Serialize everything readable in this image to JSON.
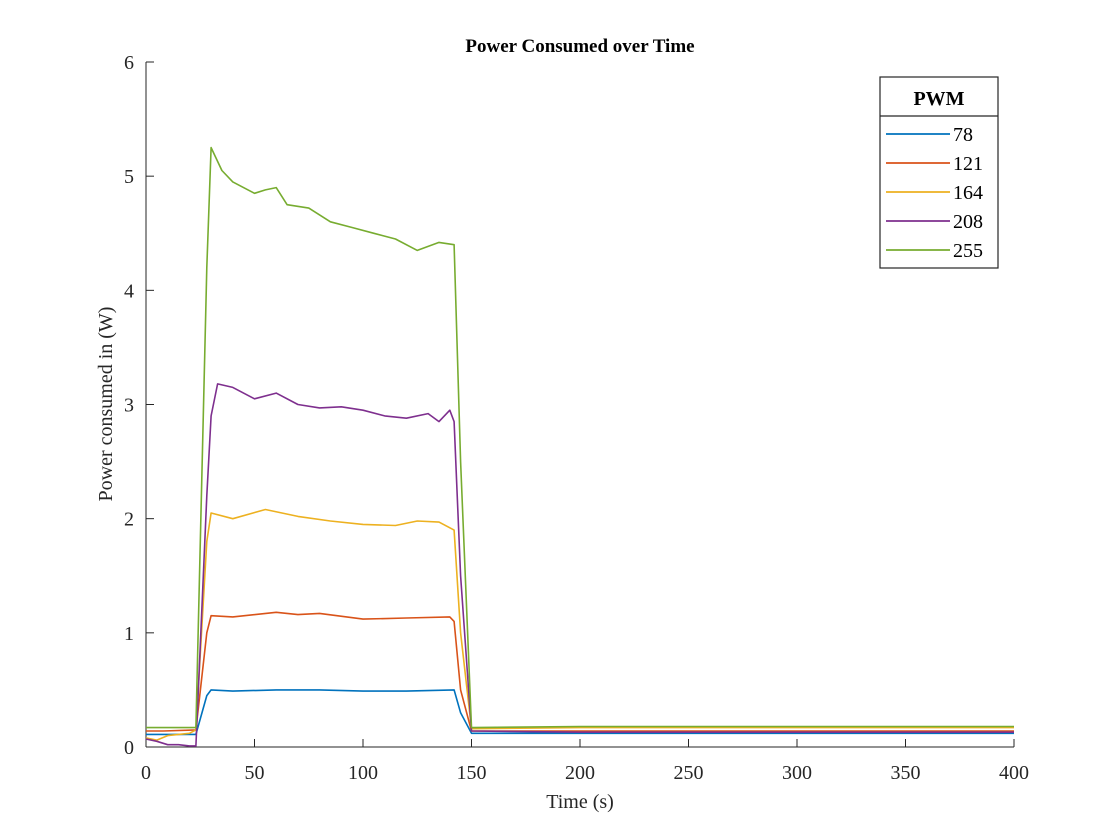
{
  "chart_data": {
    "type": "line",
    "title": "Power Consumed over Time",
    "xlabel": "Time (s)",
    "ylabel": "Power consumed in (W)",
    "xlim": [
      0,
      400
    ],
    "ylim": [
      0,
      6
    ],
    "xticks": [
      0,
      50,
      100,
      150,
      200,
      250,
      300,
      350,
      400
    ],
    "yticks": [
      0,
      1,
      2,
      3,
      4,
      5,
      6
    ],
    "grid": false,
    "legend": {
      "title": "PWM",
      "placement": "top-right"
    },
    "series": [
      {
        "name": "78",
        "color": "#0072BD",
        "x": [
          0,
          23,
          28,
          30,
          40,
          60,
          80,
          100,
          120,
          142,
          145,
          150,
          200,
          250,
          300,
          350,
          400
        ],
        "y": [
          0.11,
          0.11,
          0.45,
          0.5,
          0.49,
          0.5,
          0.5,
          0.49,
          0.49,
          0.5,
          0.3,
          0.12,
          0.12,
          0.12,
          0.12,
          0.12,
          0.12
        ]
      },
      {
        "name": "121",
        "color": "#D95319",
        "x": [
          0,
          8,
          23,
          28,
          30,
          40,
          60,
          70,
          80,
          100,
          120,
          140,
          142,
          145,
          150,
          200,
          250,
          300,
          350,
          400
        ],
        "y": [
          0.14,
          0.14,
          0.15,
          1.0,
          1.15,
          1.14,
          1.18,
          1.16,
          1.17,
          1.12,
          1.13,
          1.14,
          1.1,
          0.5,
          0.14,
          0.14,
          0.14,
          0.14,
          0.14,
          0.14
        ]
      },
      {
        "name": "164",
        "color": "#EDB120",
        "x": [
          0,
          5,
          10,
          20,
          23,
          28,
          30,
          40,
          55,
          70,
          85,
          100,
          115,
          125,
          135,
          142,
          145,
          150,
          200,
          250,
          300,
          350,
          400
        ],
        "y": [
          0.08,
          0.06,
          0.1,
          0.12,
          0.15,
          1.8,
          2.05,
          2.0,
          2.08,
          2.02,
          1.98,
          1.95,
          1.94,
          1.98,
          1.97,
          1.9,
          1.0,
          0.16,
          0.17,
          0.17,
          0.17,
          0.17,
          0.17
        ]
      },
      {
        "name": "208",
        "color": "#7E2F8E",
        "x": [
          0,
          5,
          10,
          15,
          20,
          23,
          28,
          30,
          33,
          40,
          50,
          60,
          70,
          80,
          90,
          100,
          110,
          120,
          130,
          135,
          140,
          142,
          145,
          150,
          200,
          250,
          300,
          350,
          400
        ],
        "y": [
          0.07,
          0.05,
          0.02,
          0.02,
          0.01,
          0.01,
          2.2,
          2.9,
          3.18,
          3.15,
          3.05,
          3.1,
          3.0,
          2.97,
          2.98,
          2.95,
          2.9,
          2.88,
          2.92,
          2.85,
          2.95,
          2.85,
          1.5,
          0.14,
          0.13,
          0.13,
          0.13,
          0.13,
          0.13
        ]
      },
      {
        "name": "255",
        "color": "#77AC30",
        "x": [
          0,
          23,
          28,
          30,
          35,
          40,
          50,
          55,
          60,
          65,
          75,
          85,
          95,
          105,
          115,
          125,
          135,
          142,
          145,
          150,
          200,
          250,
          300,
          350,
          400
        ],
        "y": [
          0.17,
          0.17,
          4.2,
          5.25,
          5.05,
          4.95,
          4.85,
          4.88,
          4.9,
          4.75,
          4.72,
          4.6,
          4.55,
          4.5,
          4.45,
          4.35,
          4.42,
          4.4,
          2.5,
          0.17,
          0.18,
          0.18,
          0.18,
          0.18,
          0.18
        ]
      }
    ]
  }
}
